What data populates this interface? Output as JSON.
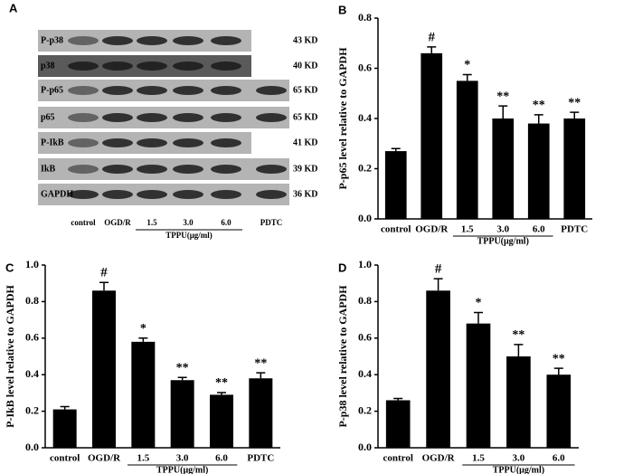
{
  "blot": {
    "panel_label": "A",
    "rows": [
      {
        "label": "P-p38",
        "size": "43 KD"
      },
      {
        "label": "p38",
        "size": "40 KD"
      },
      {
        "label": "P-p65",
        "size": "65 KD"
      },
      {
        "label": "p65",
        "size": "65 KD"
      },
      {
        "label": "P-IkB",
        "size": "41 KD"
      },
      {
        "label": "IkB",
        "size": "39 KD"
      },
      {
        "label": "GAPDH",
        "size": "36 KD"
      }
    ],
    "lanes": [
      "control",
      "OGD/R",
      "1.5",
      "3.0",
      "6.0",
      "PDTC"
    ],
    "group_label": "TPPU(μg/ml)"
  },
  "chart_data": [
    {
      "type": "bar",
      "panel_label": "B",
      "y_label": "P-p65 level relative  to GAPDH",
      "categories": [
        "control",
        "OGD/R",
        "1.5",
        "3.0",
        "6.0",
        "PDTC"
      ],
      "values": [
        0.27,
        0.66,
        0.55,
        0.4,
        0.38,
        0.4
      ],
      "errors": [
        0.01,
        0.025,
        0.025,
        0.05,
        0.035,
        0.025
      ],
      "annotations": [
        null,
        "#",
        "*",
        "**",
        "**",
        "**"
      ],
      "group_label": "TPPU(μg/ml)",
      "color": "#000000",
      "annotation_color": "#1d3b5c",
      "ylim": [
        0,
        0.8
      ],
      "yticks": [
        {
          "value": 0,
          "label": "0.0"
        },
        0.2,
        0.4,
        0.6,
        0.8
      ]
    },
    {
      "type": "bar",
      "panel_label": "C",
      "y_label": "P-IkB level relative  to GAPDH",
      "categories": [
        "control",
        "OGD/R",
        "1.5",
        "3.0",
        "6.0",
        "PDTC"
      ],
      "values": [
        0.21,
        0.86,
        0.58,
        0.37,
        0.29,
        0.38
      ],
      "errors": [
        0.015,
        0.045,
        0.02,
        0.015,
        0.012,
        0.03
      ],
      "annotations": [
        null,
        "#",
        "*",
        "**",
        "**",
        "**"
      ],
      "group_label": "TPPU(μg/ml)",
      "color": "#000000",
      "annotation_color": "#1d3b5c",
      "ylim": [
        0,
        1
      ],
      "yticks": [
        {
          "value": 0,
          "label": "0.0"
        },
        0.2,
        0.4,
        0.6,
        0.8,
        {
          "value": 1,
          "label": "1.0"
        }
      ]
    },
    {
      "type": "bar",
      "panel_label": "D",
      "y_label": "P-p38 level relative  to GAPDH",
      "categories": [
        "control",
        "OGD/R",
        "1.5",
        "3.0",
        "6.0"
      ],
      "values": [
        0.26,
        0.86,
        0.68,
        0.5,
        0.4
      ],
      "errors": [
        0.01,
        0.065,
        0.06,
        0.065,
        0.035
      ],
      "annotations": [
        null,
        "#",
        "*",
        "**",
        "**"
      ],
      "group_label": "TPPU(μg/ml)",
      "color": "#000000",
      "annotation_color": "#1d3b5c",
      "ylim": [
        0,
        1
      ],
      "yticks": [
        {
          "value": 0,
          "label": "0.0"
        },
        0.2,
        0.4,
        0.6,
        0.8,
        {
          "value": 1,
          "label": "1.0"
        }
      ]
    }
  ]
}
